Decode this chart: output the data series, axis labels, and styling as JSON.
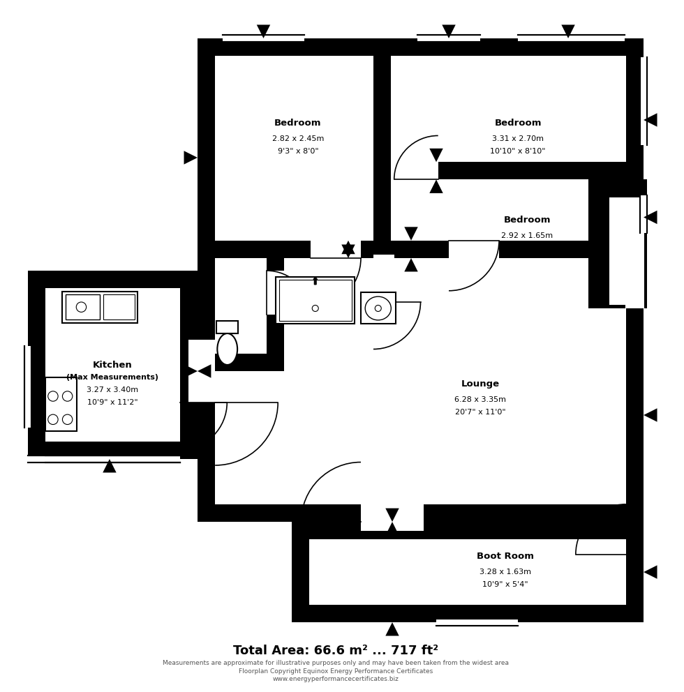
{
  "title_text": "Total Area: 66.6 m² ... 717 ft²",
  "footnote1": "Measurements are approximate for illustrative purposes only and may have been taken from the widest area",
  "footnote2": "Floorplan Copyright Equinox Energy Performance Certificates",
  "footnote3": "www.energyperformancecertificates.biz",
  "wall_color": "#1a1a1a",
  "bg_color": "#ffffff"
}
